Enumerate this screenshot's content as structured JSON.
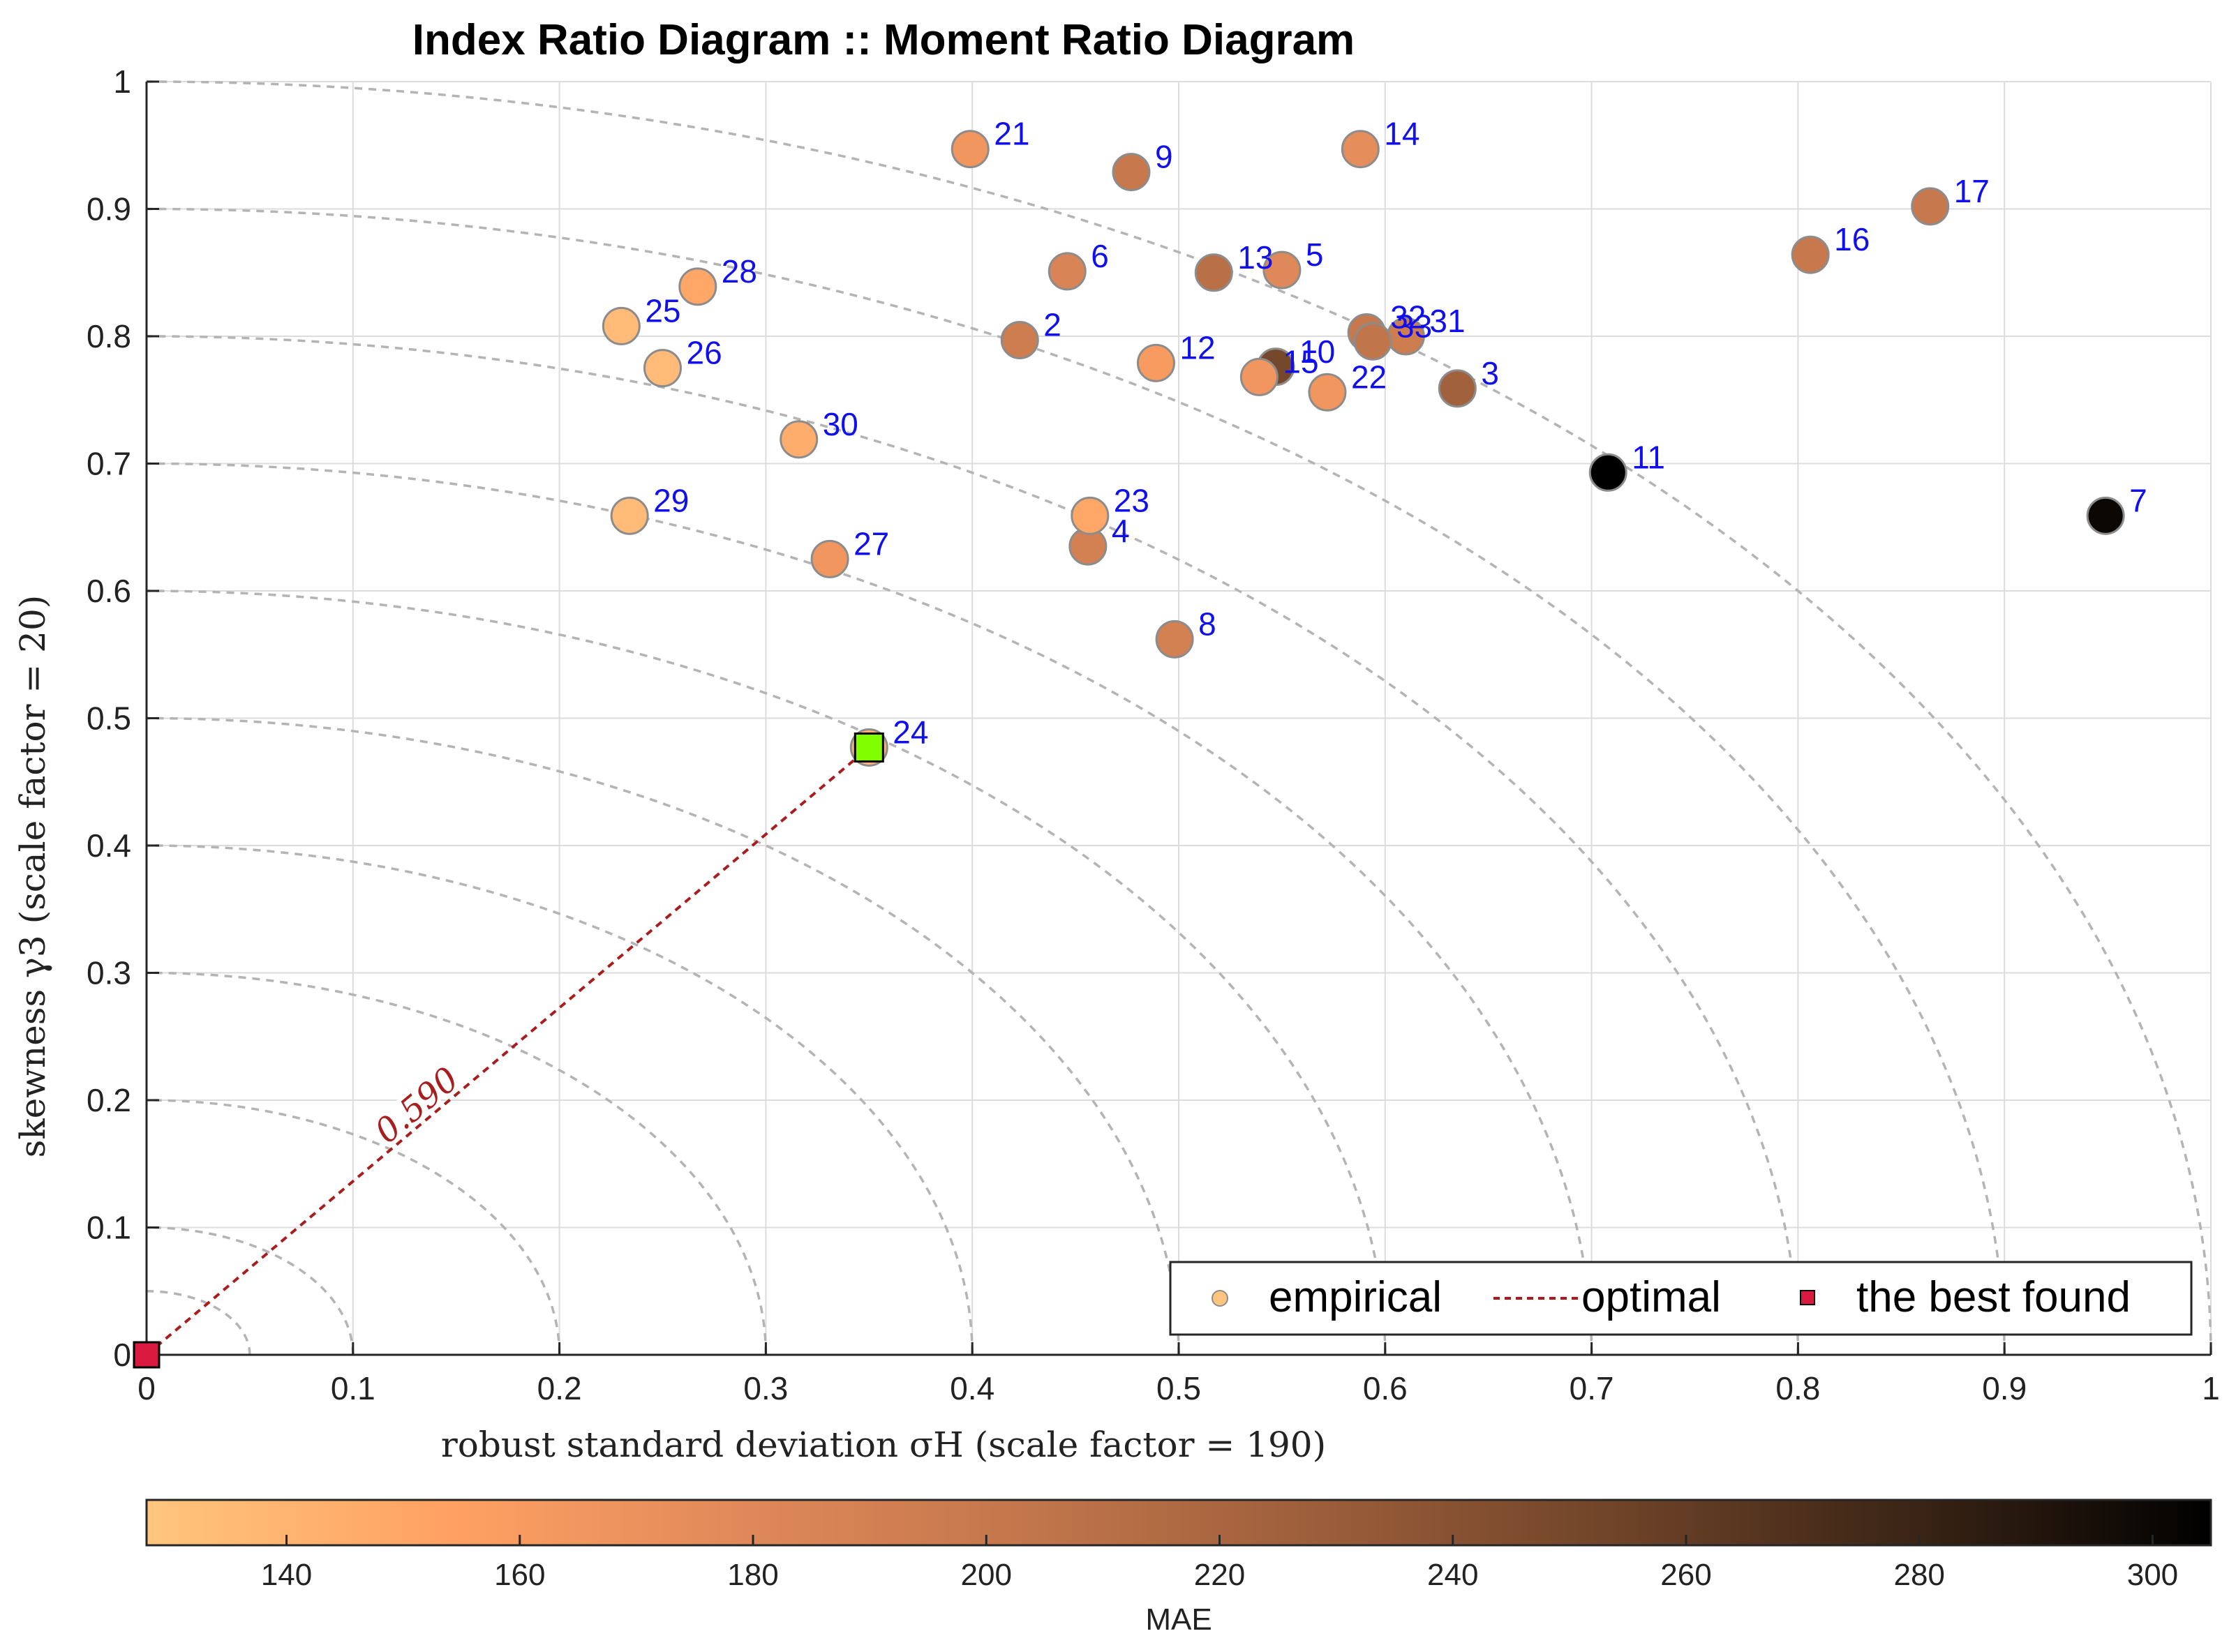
{
  "colors": {
    "grid": "#dcdcdc",
    "arc": "#b4b4b4",
    "axis": "#262626",
    "label": "#1010ee",
    "optimal": "#a81e1e",
    "best_marker": "#d81a3e",
    "highlight": "#80ff00",
    "marker_edge": "#8c8c8c",
    "colormap": [
      "#ffc57e",
      "#ffa263",
      "#e1895a",
      "#c2764b",
      "#9b5d3a",
      "#6e4328",
      "#3a2415",
      "#000000"
    ]
  },
  "chart_data": {
    "type": "scatter",
    "title": "Index Ratio Diagram :: Moment Ratio Diagram",
    "xlabel": "robust standard deviation σH (scale factor = 190)",
    "ylabel": "skewness γ3 (scale factor = 20)",
    "xlim": [
      0,
      1
    ],
    "ylim": [
      0,
      1
    ],
    "x_ticks": [
      "0",
      "0.1",
      "0.2",
      "0.3",
      "0.4",
      "0.5",
      "0.6",
      "0.7",
      "0.8",
      "0.9",
      "1"
    ],
    "y_ticks": [
      "0",
      "0.1",
      "0.2",
      "0.3",
      "0.4",
      "0.5",
      "0.6",
      "0.7",
      "0.8",
      "0.9",
      "1"
    ],
    "grid": true,
    "arc_radii": [
      0.05,
      0.1,
      0.2,
      0.3,
      0.4,
      0.5,
      0.6,
      0.7,
      0.8,
      0.9,
      1.0
    ],
    "points": [
      {
        "id": "2",
        "x": 0.423,
        "y": 0.797,
        "mae": 195
      },
      {
        "id": "3",
        "x": 0.635,
        "y": 0.759,
        "mae": 225
      },
      {
        "id": "4",
        "x": 0.456,
        "y": 0.635,
        "mae": 190
      },
      {
        "id": "5",
        "x": 0.55,
        "y": 0.852,
        "mae": 180
      },
      {
        "id": "6",
        "x": 0.446,
        "y": 0.851,
        "mae": 185
      },
      {
        "id": "7",
        "x": 0.949,
        "y": 0.659,
        "mae": 300
      },
      {
        "id": "8",
        "x": 0.498,
        "y": 0.562,
        "mae": 190
      },
      {
        "id": "9",
        "x": 0.477,
        "y": 0.929,
        "mae": 200
      },
      {
        "id": "10",
        "x": 0.547,
        "y": 0.776,
        "mae": 250
      },
      {
        "id": "11",
        "x": 0.708,
        "y": 0.693,
        "mae": 305
      },
      {
        "id": "12",
        "x": 0.489,
        "y": 0.779,
        "mae": 160
      },
      {
        "id": "13",
        "x": 0.517,
        "y": 0.85,
        "mae": 210
      },
      {
        "id": "14",
        "x": 0.588,
        "y": 0.947,
        "mae": 175
      },
      {
        "id": "15",
        "x": 0.539,
        "y": 0.768,
        "mae": 165
      },
      {
        "id": "16",
        "x": 0.806,
        "y": 0.864,
        "mae": 200
      },
      {
        "id": "17",
        "x": 0.864,
        "y": 0.902,
        "mae": 200
      },
      {
        "id": "21",
        "x": 0.399,
        "y": 0.947,
        "mae": 165
      },
      {
        "id": "22",
        "x": 0.572,
        "y": 0.756,
        "mae": 165
      },
      {
        "id": "23",
        "x": 0.457,
        "y": 0.659,
        "mae": 150
      },
      {
        "id": "24",
        "x": 0.35,
        "y": 0.477,
        "mae": 140
      },
      {
        "id": "25",
        "x": 0.23,
        "y": 0.808,
        "mae": 135
      },
      {
        "id": "26",
        "x": 0.25,
        "y": 0.775,
        "mae": 135
      },
      {
        "id": "27",
        "x": 0.331,
        "y": 0.625,
        "mae": 165
      },
      {
        "id": "28",
        "x": 0.267,
        "y": 0.839,
        "mae": 150
      },
      {
        "id": "29",
        "x": 0.234,
        "y": 0.659,
        "mae": 135
      },
      {
        "id": "30",
        "x": 0.316,
        "y": 0.719,
        "mae": 145
      },
      {
        "id": "31",
        "x": 0.61,
        "y": 0.8,
        "mae": 195
      },
      {
        "id": "32",
        "x": 0.591,
        "y": 0.803,
        "mae": 200
      },
      {
        "id": "33",
        "x": 0.594,
        "y": 0.796,
        "mae": 205
      }
    ],
    "best_found": {
      "id": "24",
      "x": 0.35,
      "y": 0.477
    },
    "origin_marker": {
      "x": 0,
      "y": 0
    },
    "optimal_line_label": "0.590",
    "legend": {
      "location": "bottom-right",
      "entries": [
        "empirical",
        "optimal",
        "the best found"
      ]
    },
    "colorbar": {
      "label": "MAE",
      "min": 128,
      "max": 305,
      "ticks": [
        "140",
        "160",
        "180",
        "200",
        "220",
        "240",
        "260",
        "280",
        "300"
      ]
    }
  }
}
